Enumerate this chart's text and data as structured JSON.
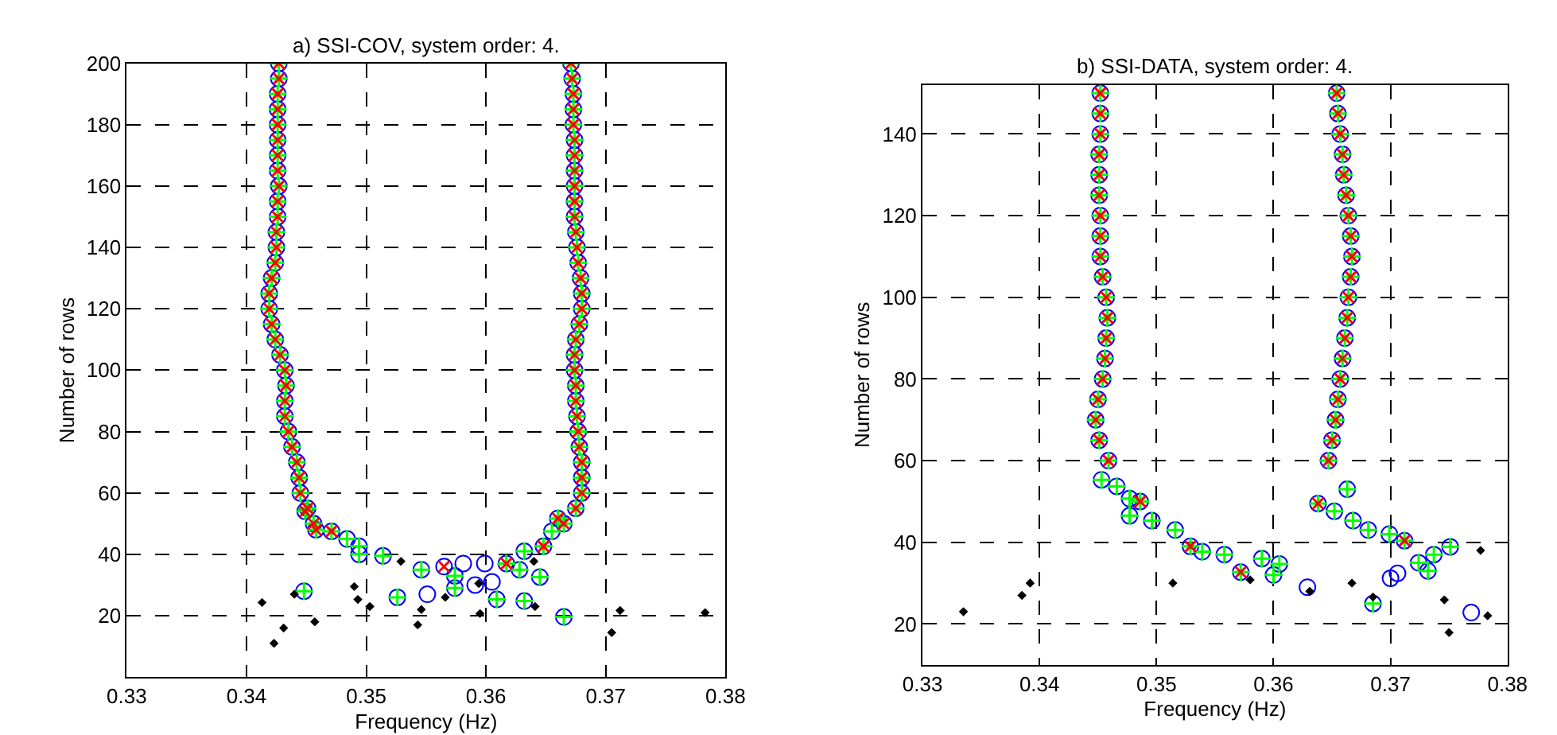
{
  "chart_data": [
    {
      "type": "scatter",
      "title": "a) SSI-COV, system order: 4.",
      "xlabel": "Frequency (Hz)",
      "ylabel": "Number of rows",
      "xlim": [
        0.33,
        0.38
      ],
      "xticks": [
        0.33,
        0.34,
        0.35,
        0.36,
        0.37,
        0.38
      ],
      "ylim": [
        0,
        200
      ],
      "yticks": [
        20,
        40,
        60,
        80,
        100,
        120,
        140,
        160,
        180,
        200
      ],
      "grid": true,
      "series": [
        {
          "color": "#0000ff",
          "marker": "circle",
          "x": [
            0.3427,
            0.3427,
            0.3426,
            0.3426,
            0.3426,
            0.3426,
            0.3426,
            0.3426,
            0.3427,
            0.3426,
            0.3426,
            0.3425,
            0.3425,
            0.3424,
            0.3421,
            0.3419,
            0.3419,
            0.3421,
            0.3424,
            0.3428,
            0.3432,
            0.3433,
            0.3432,
            0.3432,
            0.3435,
            0.3438,
            0.3442,
            0.3444,
            0.3445,
            0.3451,
            0.3456,
            0.3671,
            0.3672,
            0.3673,
            0.3673,
            0.3673,
            0.3674,
            0.3674,
            0.3674,
            0.3674,
            0.3674,
            0.3674,
            0.3675,
            0.3676,
            0.3677,
            0.3679,
            0.368,
            0.368,
            0.3678,
            0.3675,
            0.3674,
            0.3674,
            0.3675,
            0.3675,
            0.3676,
            0.3677,
            0.3678,
            0.368,
            0.368,
            0.368,
            0.3675,
            0.3665,
            0.3449,
            0.3458,
            0.3471,
            0.3484,
            0.3494,
            0.3494,
            0.3514,
            0.3448,
            0.3526,
            0.3546,
            0.3574,
            0.3574,
            0.3609,
            0.3628,
            0.3632,
            0.3632,
            0.3645,
            0.3655,
            0.366,
            0.3665,
            0.3617,
            0.3648,
            0.3565,
            0.3581,
            0.3599,
            0.3551,
            0.3591,
            0.3605
          ],
          "values": [
            200,
            195,
            190,
            185,
            180,
            175,
            170,
            165,
            160,
            155,
            150,
            145,
            140,
            135,
            130,
            125,
            120,
            115,
            110,
            105,
            100,
            95,
            90,
            85,
            80,
            75,
            70,
            65,
            60,
            55,
            50,
            200,
            195,
            190,
            185,
            180,
            175,
            170,
            165,
            160,
            155,
            150,
            145,
            140,
            135,
            130,
            125,
            120,
            115,
            110,
            105,
            100,
            95,
            90,
            85,
            80,
            75,
            70,
            65,
            60,
            55,
            50,
            54,
            48,
            47.5,
            45,
            42.6,
            40,
            39.5,
            28,
            26,
            35,
            33,
            29,
            25.3,
            35,
            41,
            24.8,
            32.6,
            47.5,
            51.7,
            19.6,
            37,
            42.6,
            36,
            37,
            37,
            27,
            30,
            31
          ]
        },
        {
          "color": "#00ff00",
          "marker": "cross",
          "x": [
            0.3427,
            0.3427,
            0.3426,
            0.3426,
            0.3426,
            0.3426,
            0.3426,
            0.3426,
            0.3427,
            0.3426,
            0.3426,
            0.3425,
            0.3425,
            0.3424,
            0.3421,
            0.3419,
            0.3419,
            0.3421,
            0.3424,
            0.3428,
            0.3432,
            0.3433,
            0.3432,
            0.3432,
            0.3435,
            0.3438,
            0.3442,
            0.3444,
            0.3445,
            0.3451,
            0.3456,
            0.3671,
            0.3672,
            0.3673,
            0.3673,
            0.3673,
            0.3674,
            0.3674,
            0.3674,
            0.3674,
            0.3674,
            0.3674,
            0.3675,
            0.3676,
            0.3677,
            0.3679,
            0.368,
            0.368,
            0.3678,
            0.3675,
            0.3674,
            0.3674,
            0.3675,
            0.3675,
            0.3676,
            0.3677,
            0.3678,
            0.368,
            0.368,
            0.368,
            0.3675,
            0.3665,
            0.3449,
            0.3458,
            0.3471,
            0.3484,
            0.3494,
            0.3494,
            0.3514,
            0.3448,
            0.3526,
            0.3546,
            0.3574,
            0.3574,
            0.3609,
            0.3628,
            0.3632,
            0.3632,
            0.3645,
            0.3655,
            0.366,
            0.3665,
            0.3617,
            0.3648
          ],
          "values": [
            200,
            195,
            190,
            185,
            180,
            175,
            170,
            165,
            160,
            155,
            150,
            145,
            140,
            135,
            130,
            125,
            120,
            115,
            110,
            105,
            100,
            95,
            90,
            85,
            80,
            75,
            70,
            65,
            60,
            55,
            50,
            200,
            195,
            190,
            185,
            180,
            175,
            170,
            165,
            160,
            155,
            150,
            145,
            140,
            135,
            130,
            125,
            120,
            115,
            110,
            105,
            100,
            95,
            90,
            85,
            80,
            75,
            70,
            65,
            60,
            55,
            50,
            54,
            48,
            47.5,
            45,
            42.6,
            40,
            39.5,
            28,
            26,
            35,
            33,
            29,
            25.3,
            35,
            41,
            24.8,
            32.6,
            47.5,
            51.7,
            19.6,
            37,
            42.6
          ]
        },
        {
          "color": "#ff0000",
          "marker": "x",
          "x": [
            0.3427,
            0.3427,
            0.3426,
            0.3426,
            0.3426,
            0.3426,
            0.3426,
            0.3426,
            0.3427,
            0.3426,
            0.3426,
            0.3425,
            0.3425,
            0.3424,
            0.3421,
            0.3419,
            0.3419,
            0.3421,
            0.3424,
            0.3428,
            0.3432,
            0.3433,
            0.3432,
            0.3432,
            0.3435,
            0.3438,
            0.3442,
            0.3444,
            0.3445,
            0.3451,
            0.3456,
            0.3671,
            0.3672,
            0.3673,
            0.3673,
            0.3673,
            0.3674,
            0.3674,
            0.3674,
            0.3674,
            0.3674,
            0.3674,
            0.3675,
            0.3676,
            0.3677,
            0.3679,
            0.368,
            0.368,
            0.3678,
            0.3675,
            0.3674,
            0.3674,
            0.3675,
            0.3675,
            0.3676,
            0.3677,
            0.3678,
            0.368,
            0.368,
            0.368,
            0.3675,
            0.3665,
            0.3449,
            0.3458,
            0.3471,
            0.3565,
            0.3617,
            0.3648,
            0.366
          ],
          "values": [
            200,
            195,
            190,
            185,
            180,
            175,
            170,
            165,
            160,
            155,
            150,
            145,
            140,
            135,
            130,
            125,
            120,
            115,
            110,
            105,
            100,
            95,
            90,
            85,
            80,
            75,
            70,
            65,
            60,
            55,
            50,
            200,
            195,
            190,
            185,
            180,
            175,
            170,
            165,
            160,
            155,
            150,
            145,
            140,
            135,
            130,
            125,
            120,
            115,
            110,
            105,
            100,
            95,
            90,
            85,
            80,
            75,
            70,
            65,
            60,
            55,
            50,
            54,
            48,
            47.5,
            36,
            37,
            42.6,
            51.7
          ]
        },
        {
          "color": "#000000",
          "marker": "diamond",
          "x": [
            0.3413,
            0.3423,
            0.3431,
            0.344,
            0.3457,
            0.349,
            0.3493,
            0.3503,
            0.3529,
            0.3546,
            0.3543,
            0.3566,
            0.3594,
            0.3595,
            0.364,
            0.3641,
            0.3712,
            0.3705,
            0.3783
          ],
          "values": [
            24.3,
            11,
            16,
            27,
            18,
            29.5,
            25.3,
            23,
            37.7,
            22,
            17,
            26,
            30.5,
            20.7,
            37.7,
            23,
            21.7,
            14.5,
            21
          ]
        }
      ]
    },
    {
      "type": "scatter",
      "title": "b) SSI-DATA, system order: 4.",
      "xlabel": "Frequency (Hz)",
      "ylabel": "Number of rows",
      "xlim": [
        0.33,
        0.38
      ],
      "xticks": [
        0.33,
        0.34,
        0.35,
        0.36,
        0.37,
        0.38
      ],
      "ylim": [
        10,
        152
      ],
      "yticks": [
        20,
        40,
        60,
        80,
        100,
        120,
        140
      ],
      "grid": true,
      "series": [
        {
          "color": "#0000ff",
          "marker": "circle",
          "x": [
            0.3452,
            0.3452,
            0.3452,
            0.3451,
            0.3451,
            0.3451,
            0.3452,
            0.3452,
            0.3452,
            0.3454,
            0.3457,
            0.3458,
            0.3457,
            0.3456,
            0.3454,
            0.345,
            0.3448,
            0.3451,
            0.3459,
            0.3654,
            0.3655,
            0.3657,
            0.3659,
            0.366,
            0.3662,
            0.3664,
            0.3666,
            0.3667,
            0.3666,
            0.3664,
            0.3663,
            0.3661,
            0.3659,
            0.3657,
            0.3655,
            0.3653,
            0.365,
            0.3647,
            0.3453,
            0.3466,
            0.3477,
            0.3477,
            0.3486,
            0.3496,
            0.3516,
            0.3529,
            0.3539,
            0.3558,
            0.3572,
            0.359,
            0.3605,
            0.36,
            0.3685,
            0.3638,
            0.3652,
            0.3663,
            0.3668,
            0.3681,
            0.3699,
            0.3712,
            0.3724,
            0.3732,
            0.3737,
            0.3751,
            0.3629,
            0.37,
            0.3706,
            0.3769
          ],
          "values": [
            150,
            145,
            140,
            135,
            130,
            125,
            120,
            115,
            110,
            105,
            100,
            95,
            90,
            85,
            80,
            75,
            70,
            65,
            60,
            150,
            145,
            140,
            135,
            130,
            125,
            120,
            115,
            110,
            105,
            100,
            95,
            90,
            85,
            80,
            75,
            70,
            65,
            60,
            55.3,
            53.7,
            50.7,
            46.5,
            50,
            45.3,
            43,
            39,
            37.7,
            37,
            32.7,
            36,
            34.7,
            32,
            25,
            49.5,
            47.6,
            53,
            45.3,
            43,
            42,
            40.4,
            35,
            33,
            37,
            38.9,
            29,
            31.2,
            32.4,
            22.8
          ]
        },
        {
          "color": "#00ff00",
          "marker": "cross",
          "x": [
            0.3452,
            0.3452,
            0.3452,
            0.3451,
            0.3451,
            0.3451,
            0.3452,
            0.3452,
            0.3452,
            0.3454,
            0.3457,
            0.3458,
            0.3457,
            0.3456,
            0.3454,
            0.345,
            0.3448,
            0.3451,
            0.3459,
            0.3654,
            0.3655,
            0.3657,
            0.3659,
            0.366,
            0.3662,
            0.3664,
            0.3666,
            0.3667,
            0.3666,
            0.3664,
            0.3663,
            0.3661,
            0.3659,
            0.3657,
            0.3655,
            0.3653,
            0.365,
            0.3647,
            0.3453,
            0.3466,
            0.3477,
            0.3477,
            0.3486,
            0.3496,
            0.3516,
            0.3529,
            0.3539,
            0.3558,
            0.3572,
            0.359,
            0.3605,
            0.36,
            0.3685,
            0.3638,
            0.3652,
            0.3663,
            0.3668,
            0.3681,
            0.3699,
            0.3712,
            0.3724,
            0.3732,
            0.3737,
            0.3751
          ],
          "values": [
            150,
            145,
            140,
            135,
            130,
            125,
            120,
            115,
            110,
            105,
            100,
            95,
            90,
            85,
            80,
            75,
            70,
            65,
            60,
            150,
            145,
            140,
            135,
            130,
            125,
            120,
            115,
            110,
            105,
            100,
            95,
            90,
            85,
            80,
            75,
            70,
            65,
            60,
            55.3,
            53.7,
            50.7,
            46.5,
            50,
            45.3,
            43,
            39,
            37.7,
            37,
            32.7,
            36,
            34.7,
            32,
            25,
            49.5,
            47.6,
            53,
            45.3,
            43,
            42,
            40.4,
            35,
            33,
            37,
            38.9
          ]
        },
        {
          "color": "#ff0000",
          "marker": "x",
          "x": [
            0.3452,
            0.3452,
            0.3452,
            0.3451,
            0.3451,
            0.3451,
            0.3452,
            0.3452,
            0.3452,
            0.3454,
            0.3457,
            0.3458,
            0.3457,
            0.3456,
            0.3454,
            0.345,
            0.3448,
            0.3451,
            0.3459,
            0.3654,
            0.3655,
            0.3657,
            0.3659,
            0.366,
            0.3662,
            0.3664,
            0.3666,
            0.3667,
            0.3666,
            0.3664,
            0.3663,
            0.3661,
            0.3659,
            0.3657,
            0.3655,
            0.3653,
            0.365,
            0.3647,
            0.3486,
            0.3529,
            0.3572,
            0.3638,
            0.3712
          ],
          "values": [
            150,
            145,
            140,
            135,
            130,
            125,
            120,
            115,
            110,
            105,
            100,
            95,
            90,
            85,
            80,
            75,
            70,
            65,
            60,
            150,
            145,
            140,
            135,
            130,
            125,
            120,
            115,
            110,
            105,
            100,
            95,
            90,
            85,
            80,
            75,
            70,
            65,
            60,
            50,
            39,
            32.7,
            49.5,
            40.4
          ]
        },
        {
          "color": "#000000",
          "marker": "diamond",
          "x": [
            0.3335,
            0.3385,
            0.3392,
            0.3514,
            0.358,
            0.3631,
            0.3667,
            0.3685,
            0.3746,
            0.375,
            0.3777,
            0.3783
          ],
          "values": [
            23,
            27,
            30,
            30,
            30.8,
            28,
            30,
            26.6,
            25.9,
            17.9,
            38,
            22
          ]
        }
      ]
    }
  ]
}
